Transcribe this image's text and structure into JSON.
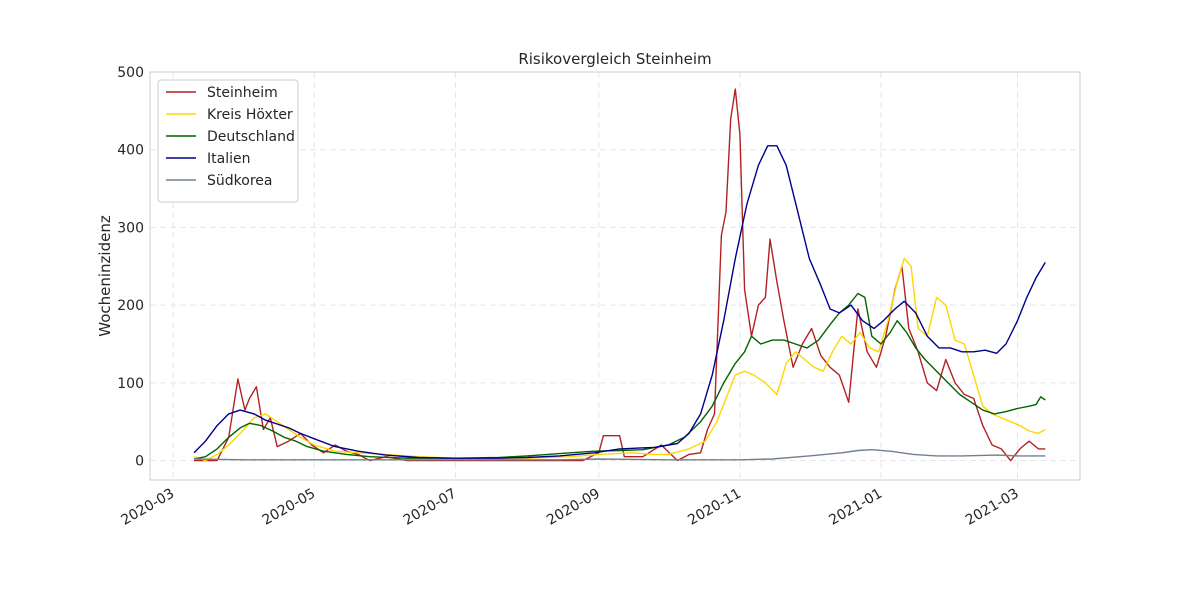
{
  "chart_data": {
    "type": "line",
    "title": "Risikovergleich Steinheim",
    "xlabel": "",
    "ylabel": "Wocheninzidenz",
    "xlim": [
      "2020-02-20",
      "2021-03-28"
    ],
    "ylim": [
      -25,
      500
    ],
    "yticks": [
      0,
      100,
      200,
      300,
      400,
      500
    ],
    "xticks": [
      "2020-03",
      "2020-05",
      "2020-07",
      "2020-09",
      "2020-11",
      "2021-01",
      "2021-03"
    ],
    "grid": true,
    "legend": "top-left",
    "series": [
      {
        "name": "Steinheim",
        "color": "#b22222",
        "points": [
          [
            "2020-03-10",
            0
          ],
          [
            "2020-03-20",
            0
          ],
          [
            "2020-03-25",
            30
          ],
          [
            "2020-03-29",
            105
          ],
          [
            "2020-04-01",
            65
          ],
          [
            "2020-04-03",
            80
          ],
          [
            "2020-04-06",
            95
          ],
          [
            "2020-04-09",
            40
          ],
          [
            "2020-04-12",
            55
          ],
          [
            "2020-04-15",
            18
          ],
          [
            "2020-04-20",
            25
          ],
          [
            "2020-04-25",
            35
          ],
          [
            "2020-04-30",
            20
          ],
          [
            "2020-05-05",
            10
          ],
          [
            "2020-05-10",
            20
          ],
          [
            "2020-05-15",
            12
          ],
          [
            "2020-05-20",
            8
          ],
          [
            "2020-05-25",
            0
          ],
          [
            "2020-06-01",
            5
          ],
          [
            "2020-06-10",
            0
          ],
          [
            "2020-07-01",
            0
          ],
          [
            "2020-08-01",
            0
          ],
          [
            "2020-08-25",
            0
          ],
          [
            "2020-09-01",
            10
          ],
          [
            "2020-09-03",
            32
          ],
          [
            "2020-09-10",
            32
          ],
          [
            "2020-09-12",
            5
          ],
          [
            "2020-09-20",
            5
          ],
          [
            "2020-09-28",
            20
          ],
          [
            "2020-10-05",
            0
          ],
          [
            "2020-10-10",
            8
          ],
          [
            "2020-10-15",
            10
          ],
          [
            "2020-10-18",
            40
          ],
          [
            "2020-10-21",
            60
          ],
          [
            "2020-10-24",
            290
          ],
          [
            "2020-10-26",
            320
          ],
          [
            "2020-10-28",
            440
          ],
          [
            "2020-10-30",
            478
          ],
          [
            "2020-11-01",
            420
          ],
          [
            "2020-11-03",
            220
          ],
          [
            "2020-11-06",
            160
          ],
          [
            "2020-11-09",
            200
          ],
          [
            "2020-11-12",
            210
          ],
          [
            "2020-11-14",
            285
          ],
          [
            "2020-11-17",
            230
          ],
          [
            "2020-11-20",
            180
          ],
          [
            "2020-11-24",
            120
          ],
          [
            "2020-11-28",
            150
          ],
          [
            "2020-12-02",
            170
          ],
          [
            "2020-12-06",
            135
          ],
          [
            "2020-12-10",
            120
          ],
          [
            "2020-12-14",
            110
          ],
          [
            "2020-12-18",
            75
          ],
          [
            "2020-12-22",
            195
          ],
          [
            "2020-12-26",
            140
          ],
          [
            "2020-12-30",
            120
          ],
          [
            "2021-01-03",
            160
          ],
          [
            "2021-01-07",
            220
          ],
          [
            "2021-01-10",
            250
          ],
          [
            "2021-01-13",
            170
          ],
          [
            "2021-01-17",
            140
          ],
          [
            "2021-01-21",
            100
          ],
          [
            "2021-01-25",
            90
          ],
          [
            "2021-01-29",
            130
          ],
          [
            "2021-02-02",
            100
          ],
          [
            "2021-02-06",
            85
          ],
          [
            "2021-02-10",
            80
          ],
          [
            "2021-02-14",
            45
          ],
          [
            "2021-02-18",
            20
          ],
          [
            "2021-02-22",
            15
          ],
          [
            "2021-02-26",
            0
          ],
          [
            "2021-03-02",
            15
          ],
          [
            "2021-03-06",
            25
          ],
          [
            "2021-03-10",
            15
          ],
          [
            "2021-03-13",
            15
          ]
        ]
      },
      {
        "name": "Kreis Höxter",
        "color": "#ffd700",
        "points": [
          [
            "2020-03-10",
            5
          ],
          [
            "2020-03-15",
            0
          ],
          [
            "2020-03-20",
            8
          ],
          [
            "2020-03-25",
            20
          ],
          [
            "2020-03-30",
            35
          ],
          [
            "2020-04-05",
            55
          ],
          [
            "2020-04-10",
            60
          ],
          [
            "2020-04-15",
            50
          ],
          [
            "2020-04-20",
            40
          ],
          [
            "2020-04-25",
            30
          ],
          [
            "2020-05-01",
            20
          ],
          [
            "2020-05-10",
            12
          ],
          [
            "2020-05-20",
            10
          ],
          [
            "2020-06-01",
            8
          ],
          [
            "2020-06-15",
            5
          ],
          [
            "2020-07-01",
            3
          ],
          [
            "2020-08-01",
            3
          ],
          [
            "2020-08-20",
            5
          ],
          [
            "2020-09-01",
            8
          ],
          [
            "2020-09-15",
            10
          ],
          [
            "2020-09-25",
            8
          ],
          [
            "2020-10-01",
            8
          ],
          [
            "2020-10-10",
            15
          ],
          [
            "2020-10-17",
            25
          ],
          [
            "2020-10-22",
            50
          ],
          [
            "2020-10-26",
            80
          ],
          [
            "2020-10-30",
            110
          ],
          [
            "2020-11-03",
            115
          ],
          [
            "2020-11-07",
            110
          ],
          [
            "2020-11-12",
            100
          ],
          [
            "2020-11-17",
            85
          ],
          [
            "2020-11-21",
            125
          ],
          [
            "2020-11-25",
            140
          ],
          [
            "2020-11-29",
            130
          ],
          [
            "2020-12-03",
            120
          ],
          [
            "2020-12-07",
            115
          ],
          [
            "2020-12-11",
            140
          ],
          [
            "2020-12-15",
            160
          ],
          [
            "2020-12-19",
            150
          ],
          [
            "2020-12-23",
            165
          ],
          [
            "2020-12-27",
            145
          ],
          [
            "2020-12-31",
            140
          ],
          [
            "2021-01-04",
            180
          ],
          [
            "2021-01-08",
            230
          ],
          [
            "2021-01-11",
            260
          ],
          [
            "2021-01-14",
            250
          ],
          [
            "2021-01-17",
            170
          ],
          [
            "2021-01-21",
            160
          ],
          [
            "2021-01-25",
            210
          ],
          [
            "2021-01-29",
            200
          ],
          [
            "2021-02-02",
            155
          ],
          [
            "2021-02-06",
            150
          ],
          [
            "2021-02-10",
            110
          ],
          [
            "2021-02-14",
            70
          ],
          [
            "2021-02-18",
            60
          ],
          [
            "2021-02-22",
            55
          ],
          [
            "2021-02-26",
            50
          ],
          [
            "2021-03-02",
            45
          ],
          [
            "2021-03-06",
            38
          ],
          [
            "2021-03-10",
            35
          ],
          [
            "2021-03-13",
            40
          ]
        ]
      },
      {
        "name": "Deutschland",
        "color": "#006400",
        "points": [
          [
            "2020-03-10",
            2
          ],
          [
            "2020-03-15",
            5
          ],
          [
            "2020-03-20",
            15
          ],
          [
            "2020-03-25",
            30
          ],
          [
            "2020-03-30",
            42
          ],
          [
            "2020-04-03",
            48
          ],
          [
            "2020-04-08",
            45
          ],
          [
            "2020-04-13",
            38
          ],
          [
            "2020-04-18",
            30
          ],
          [
            "2020-04-23",
            25
          ],
          [
            "2020-04-28",
            18
          ],
          [
            "2020-05-05",
            12
          ],
          [
            "2020-05-15",
            8
          ],
          [
            "2020-05-25",
            5
          ],
          [
            "2020-06-10",
            3
          ],
          [
            "2020-07-01",
            3
          ],
          [
            "2020-07-20",
            4
          ],
          [
            "2020-08-01",
            6
          ],
          [
            "2020-08-15",
            9
          ],
          [
            "2020-08-30",
            12
          ],
          [
            "2020-09-10",
            13
          ],
          [
            "2020-09-20",
            14
          ],
          [
            "2020-10-01",
            20
          ],
          [
            "2020-10-08",
            30
          ],
          [
            "2020-10-15",
            50
          ],
          [
            "2020-10-20",
            70
          ],
          [
            "2020-10-25",
            100
          ],
          [
            "2020-10-30",
            125
          ],
          [
            "2020-11-03",
            140
          ],
          [
            "2020-11-06",
            160
          ],
          [
            "2020-11-10",
            150
          ],
          [
            "2020-11-15",
            155
          ],
          [
            "2020-11-20",
            155
          ],
          [
            "2020-11-25",
            150
          ],
          [
            "2020-11-30",
            145
          ],
          [
            "2020-12-05",
            155
          ],
          [
            "2020-12-10",
            175
          ],
          [
            "2020-12-14",
            190
          ],
          [
            "2020-12-18",
            200
          ],
          [
            "2020-12-22",
            215
          ],
          [
            "2020-12-25",
            210
          ],
          [
            "2020-12-28",
            160
          ],
          [
            "2021-01-01",
            150
          ],
          [
            "2021-01-05",
            165
          ],
          [
            "2021-01-08",
            180
          ],
          [
            "2021-01-12",
            165
          ],
          [
            "2021-01-16",
            145
          ],
          [
            "2021-01-20",
            130
          ],
          [
            "2021-01-25",
            115
          ],
          [
            "2021-01-30",
            100
          ],
          [
            "2021-02-04",
            85
          ],
          [
            "2021-02-09",
            75
          ],
          [
            "2021-02-14",
            65
          ],
          [
            "2021-02-19",
            60
          ],
          [
            "2021-02-24",
            63
          ],
          [
            "2021-03-01",
            67
          ],
          [
            "2021-03-06",
            70
          ],
          [
            "2021-03-09",
            72
          ],
          [
            "2021-03-11",
            82
          ],
          [
            "2021-03-13",
            78
          ]
        ]
      },
      {
        "name": "Italien",
        "color": "#00008b",
        "points": [
          [
            "2020-03-10",
            10
          ],
          [
            "2020-03-15",
            25
          ],
          [
            "2020-03-20",
            45
          ],
          [
            "2020-03-25",
            60
          ],
          [
            "2020-03-30",
            65
          ],
          [
            "2020-04-05",
            60
          ],
          [
            "2020-04-10",
            52
          ],
          [
            "2020-04-15",
            47
          ],
          [
            "2020-04-20",
            42
          ],
          [
            "2020-04-25",
            35
          ],
          [
            "2020-05-01",
            28
          ],
          [
            "2020-05-10",
            18
          ],
          [
            "2020-05-20",
            12
          ],
          [
            "2020-06-01",
            7
          ],
          [
            "2020-06-15",
            4
          ],
          [
            "2020-07-01",
            3
          ],
          [
            "2020-07-20",
            3
          ],
          [
            "2020-08-01",
            4
          ],
          [
            "2020-08-15",
            6
          ],
          [
            "2020-08-30",
            10
          ],
          [
            "2020-09-10",
            15
          ],
          [
            "2020-09-25",
            17
          ],
          [
            "2020-10-05",
            22
          ],
          [
            "2020-10-10",
            35
          ],
          [
            "2020-10-15",
            60
          ],
          [
            "2020-10-20",
            110
          ],
          [
            "2020-10-25",
            180
          ],
          [
            "2020-10-30",
            260
          ],
          [
            "2020-11-04",
            330
          ],
          [
            "2020-11-09",
            380
          ],
          [
            "2020-11-13",
            405
          ],
          [
            "2020-11-17",
            405
          ],
          [
            "2020-11-21",
            380
          ],
          [
            "2020-11-26",
            320
          ],
          [
            "2020-12-01",
            260
          ],
          [
            "2020-12-06",
            225
          ],
          [
            "2020-12-10",
            195
          ],
          [
            "2020-12-14",
            190
          ],
          [
            "2020-12-19",
            200
          ],
          [
            "2020-12-24",
            180
          ],
          [
            "2020-12-29",
            170
          ],
          [
            "2021-01-02",
            180
          ],
          [
            "2021-01-07",
            195
          ],
          [
            "2021-01-11",
            205
          ],
          [
            "2021-01-16",
            190
          ],
          [
            "2021-01-21",
            160
          ],
          [
            "2021-01-26",
            145
          ],
          [
            "2021-01-31",
            145
          ],
          [
            "2021-02-05",
            140
          ],
          [
            "2021-02-10",
            140
          ],
          [
            "2021-02-15",
            142
          ],
          [
            "2021-02-20",
            138
          ],
          [
            "2021-02-24",
            150
          ],
          [
            "2021-03-01",
            180
          ],
          [
            "2021-03-05",
            210
          ],
          [
            "2021-03-09",
            235
          ],
          [
            "2021-03-13",
            255
          ]
        ]
      },
      {
        "name": "Südkorea",
        "color": "#708090",
        "points": [
          [
            "2020-03-10",
            2
          ],
          [
            "2020-04-01",
            1
          ],
          [
            "2020-05-01",
            1
          ],
          [
            "2020-07-01",
            1
          ],
          [
            "2020-08-15",
            1
          ],
          [
            "2020-09-01",
            2
          ],
          [
            "2020-10-01",
            1
          ],
          [
            "2020-11-01",
            1
          ],
          [
            "2020-11-15",
            2
          ],
          [
            "2020-12-01",
            6
          ],
          [
            "2020-12-15",
            10
          ],
          [
            "2020-12-22",
            13
          ],
          [
            "2020-12-28",
            14
          ],
          [
            "2021-01-05",
            12
          ],
          [
            "2021-01-15",
            8
          ],
          [
            "2021-01-25",
            6
          ],
          [
            "2021-02-05",
            6
          ],
          [
            "2021-02-20",
            7
          ],
          [
            "2021-03-01",
            6
          ],
          [
            "2021-03-13",
            6
          ]
        ]
      }
    ]
  }
}
